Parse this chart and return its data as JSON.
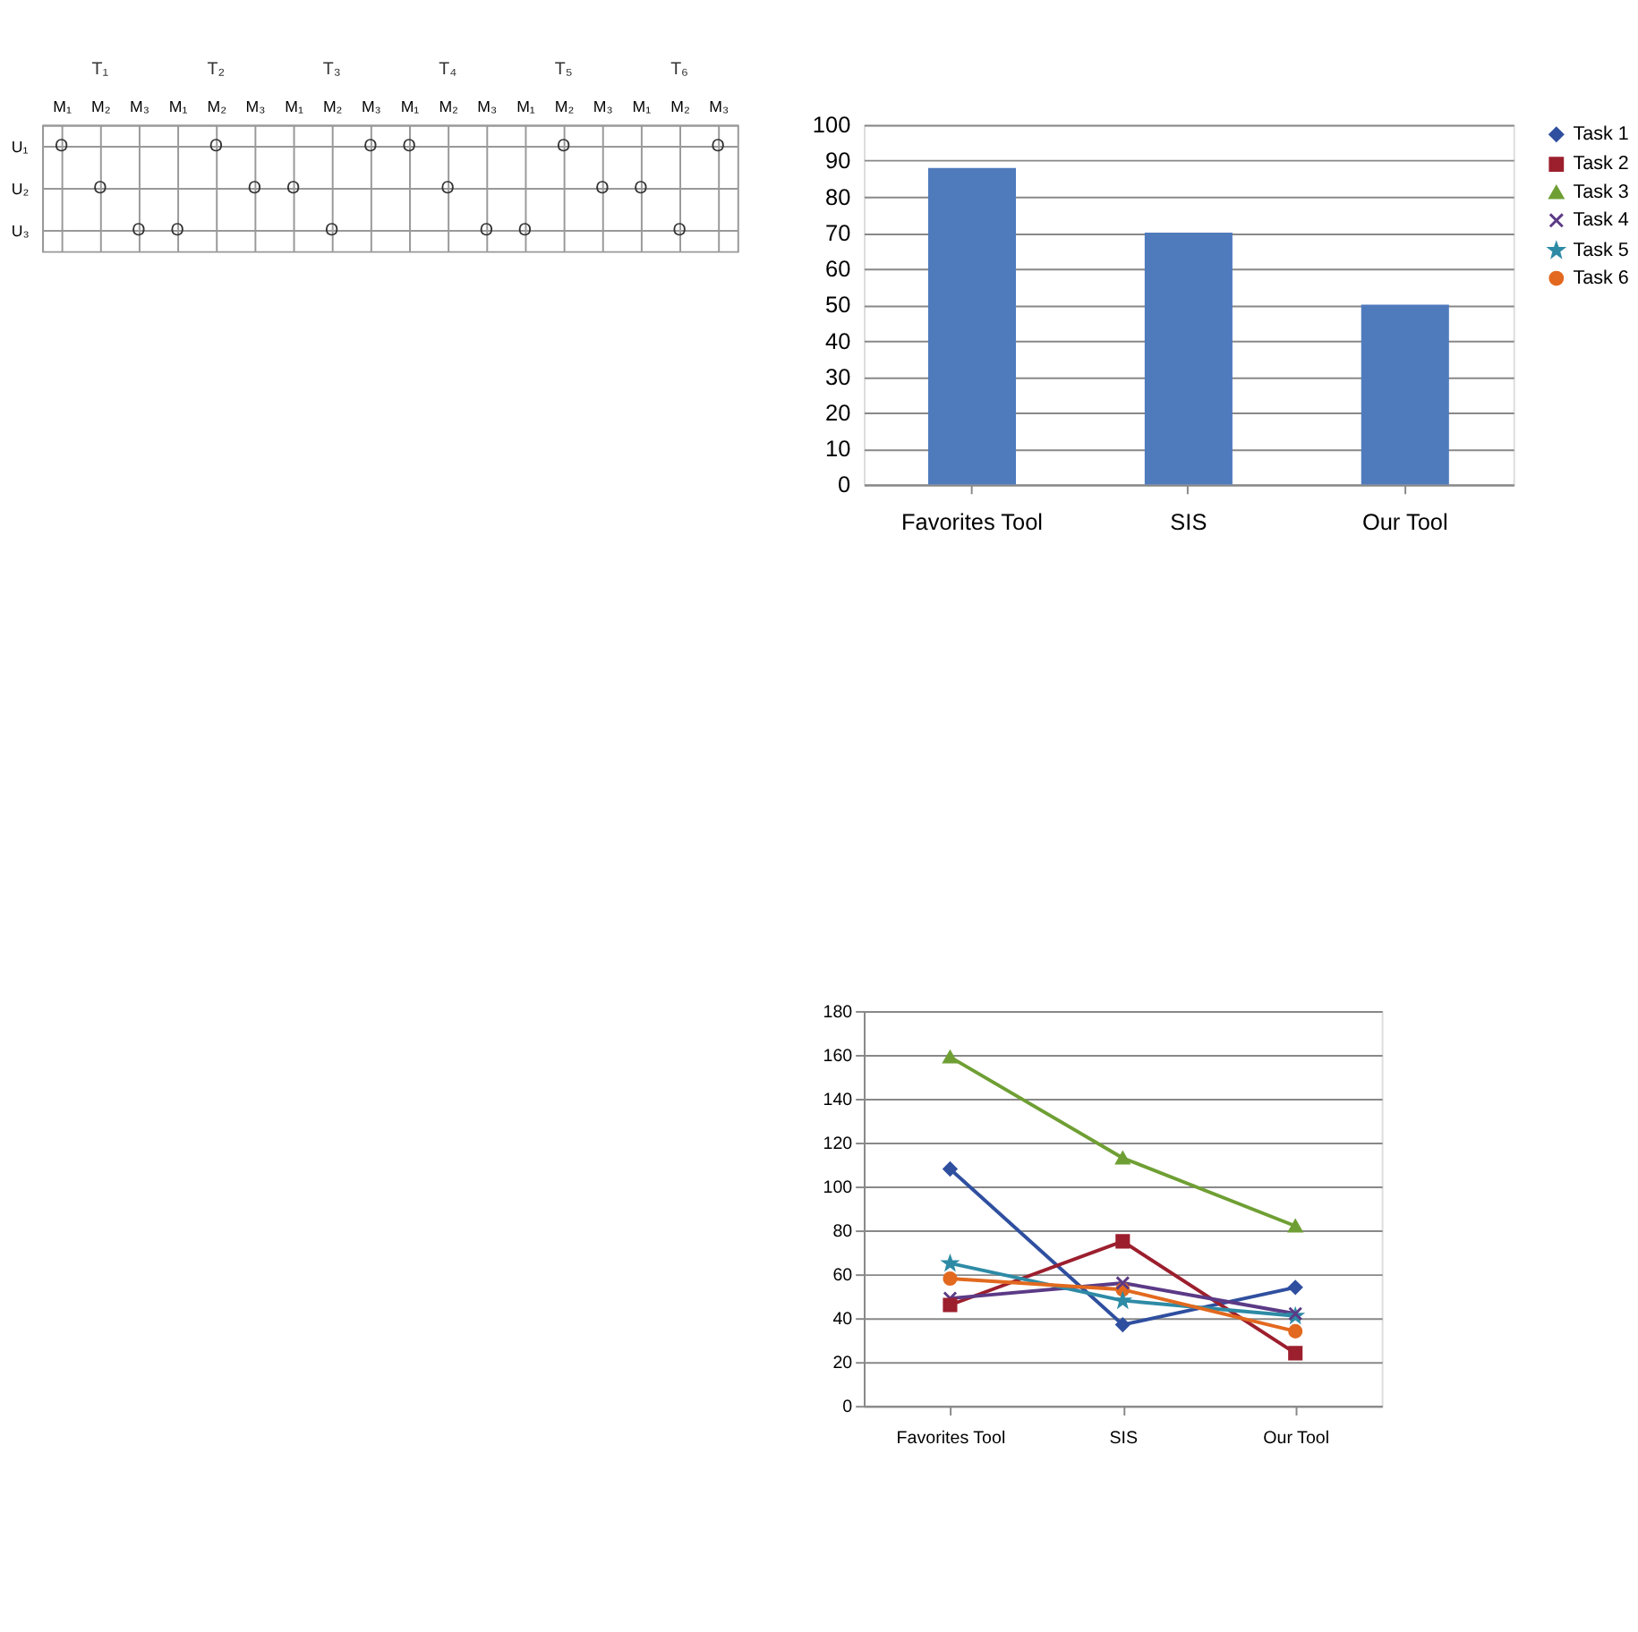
{
  "chart_data": [
    {
      "type": "other",
      "annotations": [
        "T₁",
        "T₂",
        "T₃",
        "T₄",
        "T₅",
        "T₆"
      ],
      "categories": [
        "M₁",
        "M₂",
        "M₃",
        "M₁",
        "M₂",
        "M₃",
        "M₁",
        "M₂",
        "M₃",
        "M₁",
        "M₂",
        "M₃",
        "M₁",
        "M₂",
        "M₃",
        "M₁",
        "M₂",
        "M₃"
      ],
      "y_categories": [
        "U₁",
        "U₂",
        "U₃"
      ],
      "cells": [
        [
          "O",
          null,
          null,
          null,
          "O",
          null,
          null,
          null,
          "O",
          "O",
          null,
          null,
          null,
          "O",
          null,
          null,
          null,
          "O"
        ],
        [
          null,
          "O",
          null,
          null,
          null,
          "O",
          "O",
          null,
          null,
          null,
          "O",
          null,
          null,
          null,
          "O",
          "O",
          null,
          null
        ],
        [
          null,
          null,
          "O",
          "O",
          null,
          null,
          null,
          "O",
          null,
          null,
          null,
          "O",
          "O",
          null,
          null,
          null,
          "O",
          null
        ]
      ]
    },
    {
      "type": "bar",
      "categories": [
        "Favorites Tool",
        "SIS",
        "Our Tool"
      ],
      "values": [
        88,
        70,
        50
      ],
      "color": "#4f7bbd",
      "ylim": [
        0,
        100
      ],
      "yticks": [
        0,
        10,
        20,
        30,
        40,
        50,
        60,
        70,
        80,
        90,
        100
      ],
      "grid": "y"
    },
    {
      "type": "line",
      "categories": [
        "Favorites Tool",
        "SIS",
        "Our Tool"
      ],
      "ylim": [
        0,
        180
      ],
      "yticks": [
        0,
        20,
        40,
        60,
        80,
        100,
        120,
        140,
        160,
        180
      ],
      "grid": "y",
      "legend": "right",
      "series": [
        {
          "name": "Task 1",
          "color": "#2f4f9f",
          "marker": "diamond",
          "values": [
            108,
            37,
            54
          ]
        },
        {
          "name": "Task 2",
          "color": "#9c1f2e",
          "marker": "square",
          "values": [
            46,
            75,
            24
          ]
        },
        {
          "name": "Task 3",
          "color": "#6f9f34",
          "marker": "triangle",
          "values": [
            159,
            113,
            82
          ]
        },
        {
          "name": "Task 4",
          "color": "#5b3a86",
          "marker": "cross",
          "values": [
            49,
            56,
            42
          ]
        },
        {
          "name": "Task 5",
          "color": "#2e8ba6",
          "marker": "star",
          "values": [
            65,
            48,
            41
          ]
        },
        {
          "name": "Task 6",
          "color": "#e2691f",
          "marker": "circle",
          "values": [
            58,
            53,
            34
          ]
        }
      ]
    }
  ]
}
